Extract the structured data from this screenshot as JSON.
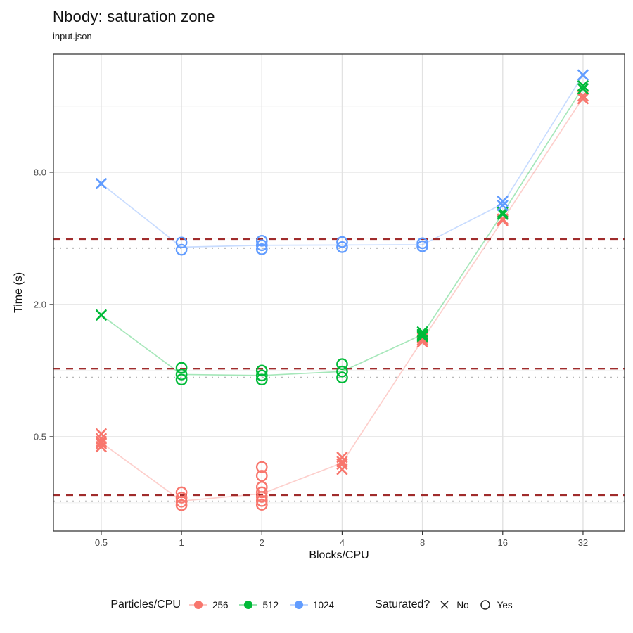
{
  "title": "Nbody: saturation zone",
  "subtitle": "input.json",
  "axes": {
    "x_label": "Blocks/CPU",
    "y_label": "Time (s)",
    "x_tick_labels": [
      "0.5",
      "1",
      "2",
      "4",
      "8",
      "16",
      "32"
    ],
    "y_tick_labels": [
      "0.5",
      "2.0",
      "8.0"
    ]
  },
  "legend": {
    "series_title": "Particles/CPU",
    "series": [
      {
        "label": "256",
        "color": "#F8766D"
      },
      {
        "label": "512",
        "color": "#00BA38"
      },
      {
        "label": "1024",
        "color": "#619CFF"
      }
    ],
    "shape_title": "Saturated?",
    "shapes": [
      {
        "label": "No",
        "shape": "cross"
      },
      {
        "label": "Yes",
        "shape": "circle"
      }
    ]
  },
  "chart_data": {
    "type": "scatter",
    "title": "Nbody: saturation zone",
    "subtitle": "input.json",
    "xlabel": "Blocks/CPU",
    "ylabel": "Time (s)",
    "x_scale": "log2",
    "y_scale": "log",
    "grid": true,
    "legend_position": "bottom",
    "xlim": [
      0.331,
      45.8
    ],
    "ylim": [
      0.186,
      27.6
    ],
    "x_ticks": [
      0.5,
      1,
      2,
      4,
      8,
      16,
      32
    ],
    "y_major_ticks": [
      0.5,
      2,
      8
    ],
    "y_minor_ticks": [
      0.25,
      1,
      4,
      16
    ],
    "colors": {
      "grid_major": "#E2E2E2",
      "grid_minor": "#EFEFEF",
      "panel_border": "#3A3A3A",
      "tick_text": "#4D4D4D",
      "dashed_line": "#A02C2C",
      "dotted_line": "#B8B8B8"
    },
    "hlines": [
      {
        "style": "dashed",
        "color": "#A02C2C",
        "y": 3.97
      },
      {
        "style": "dashed",
        "color": "#A02C2C",
        "y": 1.02
      },
      {
        "style": "dashed",
        "color": "#A02C2C",
        "y": 0.271
      },
      {
        "style": "dotted",
        "color": "#B8B8B8",
        "y": 3.61
      },
      {
        "style": "dotted",
        "color": "#B8B8B8",
        "y": 0.93
      },
      {
        "style": "dotted",
        "color": "#B8B8B8",
        "y": 0.254
      }
    ],
    "series": [
      {
        "name": "256",
        "color": "#F8766D",
        "trend_x": [
          0.5,
          1,
          2,
          4,
          8,
          16,
          32
        ],
        "trend_y": [
          0.47,
          0.255,
          0.275,
          0.38,
          1.38,
          4.85,
          17.5
        ],
        "points": [
          {
            "x": 0.5,
            "saturated": false,
            "times": [
              0.515,
              0.49,
              0.475,
              0.465,
              0.45
            ]
          },
          {
            "x": 1,
            "saturated": true,
            "times": [
              0.279,
              0.264,
              0.253,
              0.244
            ]
          },
          {
            "x": 2,
            "saturated": true,
            "times": [
              0.364,
              0.332,
              0.295,
              0.279,
              0.266,
              0.255,
              0.245
            ]
          },
          {
            "x": 4,
            "saturated": false,
            "times": [
              0.403,
              0.385,
              0.375,
              0.355
            ]
          },
          {
            "x": 8,
            "saturated": false,
            "times": [
              1.41,
              1.38,
              1.35
            ]
          },
          {
            "x": 16,
            "saturated": false,
            "times": [
              4.9,
              4.82
            ]
          },
          {
            "x": 32,
            "saturated": false,
            "times": [
              17.8,
              17.3
            ]
          }
        ]
      },
      {
        "name": "512",
        "color": "#00BA38",
        "trend_x": [
          0.5,
          1,
          2,
          4,
          8,
          16,
          32
        ],
        "trend_y": [
          1.79,
          0.96,
          0.95,
          0.99,
          1.46,
          5.2,
          19.5
        ],
        "points": [
          {
            "x": 0.5,
            "saturated": false,
            "times": [
              1.79
            ]
          },
          {
            "x": 1,
            "saturated": true,
            "times": [
              1.03,
              0.96,
              0.91
            ]
          },
          {
            "x": 2,
            "saturated": true,
            "times": [
              1.0,
              0.95,
              0.91
            ]
          },
          {
            "x": 4,
            "saturated": true,
            "times": [
              1.07,
              0.99,
              0.93
            ]
          },
          {
            "x": 8,
            "saturated": false,
            "times": [
              1.5,
              1.46,
              1.43
            ]
          },
          {
            "x": 16,
            "saturated": false,
            "times": [
              5.25,
              5.15
            ]
          },
          {
            "x": 32,
            "saturated": false,
            "times": [
              19.8,
              19.2
            ]
          }
        ]
      },
      {
        "name": "1024",
        "color": "#619CFF",
        "trend_x": [
          0.5,
          1,
          2,
          4,
          8,
          16,
          32
        ],
        "trend_y": [
          7.1,
          3.65,
          3.72,
          3.73,
          3.74,
          5.75,
          22.2
        ],
        "points": [
          {
            "x": 0.5,
            "saturated": false,
            "times": [
              7.1
            ]
          },
          {
            "x": 1,
            "saturated": true,
            "times": [
              3.83,
              3.55
            ]
          },
          {
            "x": 2,
            "saturated": true,
            "times": [
              3.9,
              3.72,
              3.57
            ]
          },
          {
            "x": 4,
            "saturated": true,
            "times": [
              3.85,
              3.65
            ]
          },
          {
            "x": 8,
            "saturated": true,
            "times": [
              3.8,
              3.68
            ]
          },
          {
            "x": 16,
            "saturated": false,
            "times": [
              5.9,
              5.65
            ]
          },
          {
            "x": 32,
            "saturated": false,
            "times": [
              22.2
            ]
          }
        ]
      }
    ]
  }
}
